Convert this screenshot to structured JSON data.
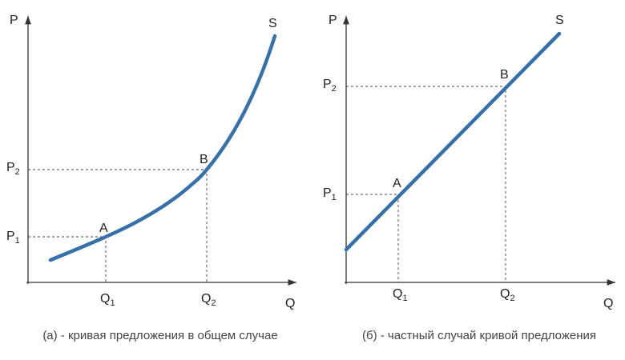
{
  "panels": [
    {
      "y_axis": "P",
      "x_axis": "Q",
      "curve": "S",
      "points": [
        {
          "name": "A",
          "q": {
            "base": "Q",
            "sub": "1"
          },
          "p": {
            "base": "P",
            "sub": "1"
          }
        },
        {
          "name": "B",
          "q": {
            "base": "Q",
            "sub": "2"
          },
          "p": {
            "base": "P",
            "sub": "2"
          }
        }
      ],
      "caption": "(а) - кривая предложения в общем случае"
    },
    {
      "y_axis": "P",
      "x_axis": "Q",
      "curve": "S",
      "points": [
        {
          "name": "A",
          "q": {
            "base": "Q",
            "sub": "1"
          },
          "p": {
            "base": "P",
            "sub": "1"
          }
        },
        {
          "name": "B",
          "q": {
            "base": "Q",
            "sub": "2"
          },
          "p": {
            "base": "P",
            "sub": "2"
          }
        }
      ],
      "caption": "(б) - частный случай кривой предложения"
    }
  ]
}
